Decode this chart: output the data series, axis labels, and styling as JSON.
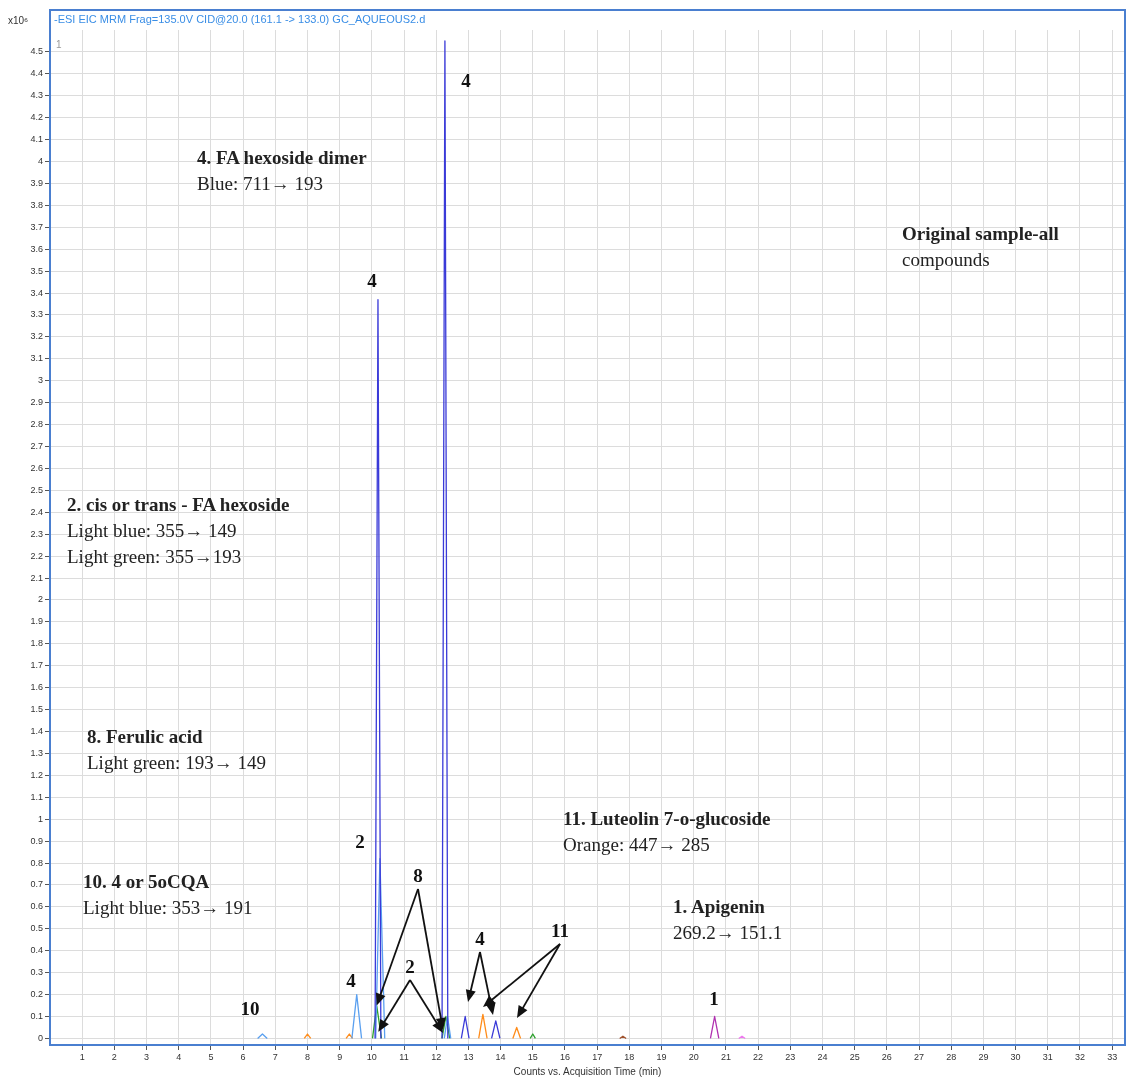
{
  "chart_data": {
    "type": "line",
    "title": "-ESI EIC MRM Frag=135.0V CID@20.0 (161.1 -> 133.0) GC_AQUEOUS2.d",
    "xlabel": "Counts vs. Acquisition Time (min)",
    "ylabel": "x10⁶",
    "xlim": [
      0,
      33.4
    ],
    "ylim": [
      -0.03,
      4.6
    ],
    "xticks": [
      1,
      2,
      3,
      4,
      5,
      6,
      7,
      8,
      9,
      10,
      11,
      12,
      13,
      14,
      15,
      16,
      17,
      18,
      19,
      20,
      21,
      22,
      23,
      24,
      25,
      26,
      27,
      28,
      29,
      30,
      31,
      32,
      33
    ],
    "yticks": [
      0,
      0.1,
      0.2,
      0.3,
      0.4,
      0.5,
      0.6,
      0.7,
      0.8,
      0.9,
      1,
      1.1,
      1.2,
      1.3,
      1.4,
      1.5,
      1.6,
      1.7,
      1.8,
      1.9,
      2,
      2.1,
      2.2,
      2.3,
      2.4,
      2.5,
      2.6,
      2.7,
      2.8,
      2.9,
      3,
      3.1,
      3.2,
      3.3,
      3.4,
      3.5,
      3.6,
      3.7,
      3.8,
      3.9,
      4,
      4.1,
      4.2,
      4.3,
      4.4,
      4.5
    ],
    "grid": true,
    "legend": false,
    "marker": "none",
    "line_style": "solid",
    "series": [
      {
        "color": "#3a3ad8",
        "x": [
          10.1,
          10.19,
          10.28,
          11,
          12.18,
          12.27,
          12.36,
          12.5,
          12.78,
          12.9,
          13.02,
          13.4,
          13.72,
          13.85,
          13.98
        ],
        "values": [
          0,
          3.37,
          0,
          null,
          0,
          4.55,
          0,
          null,
          0,
          0.1,
          0,
          null,
          0,
          0.08,
          0
        ]
      },
      {
        "color": "#5aa0f0",
        "x": [
          6.45,
          6.6,
          6.75,
          8,
          9.38,
          9.53,
          9.68,
          9.9,
          10.12,
          10.25,
          10.4,
          11,
          12.25,
          12.35,
          12.45
        ],
        "values": [
          0,
          0.02,
          0,
          null,
          0,
          0.2,
          0,
          null,
          0,
          0.82,
          0,
          null,
          0,
          0.1,
          0
        ]
      },
      {
        "color": "#2ca02c",
        "x": [
          10.02,
          10.15,
          10.3,
          11,
          12.18,
          12.3,
          12.42,
          13,
          14.92,
          15,
          15.08
        ],
        "values": [
          0,
          0.15,
          0,
          null,
          0,
          0.1,
          0,
          null,
          0,
          0.02,
          0
        ]
      },
      {
        "color": "#ff8c1a",
        "x": [
          7.9,
          8,
          8.1,
          8.6,
          9.2,
          9.3,
          9.4,
          11,
          13.32,
          13.45,
          13.58,
          14,
          14.38,
          14.5,
          14.62
        ],
        "values": [
          0,
          0.02,
          0,
          null,
          0,
          0.02,
          0,
          null,
          0,
          0.11,
          0,
          null,
          0,
          0.05,
          0
        ]
      },
      {
        "color": "#b030b0",
        "x": [
          20.52,
          20.65,
          20.78
        ],
        "values": [
          0,
          0.1,
          0
        ]
      },
      {
        "color": "#ee77ee",
        "x": [
          21.4,
          21.5,
          21.6
        ],
        "values": [
          0,
          0.01,
          0
        ]
      },
      {
        "color": "#a0522d",
        "x": [
          17.7,
          17.8,
          17.9
        ],
        "values": [
          0,
          0.01,
          0
        ]
      }
    ],
    "annotations": [
      "1",
      "4. FA hexoside dimer\nBlue: 711→ 193",
      "Original sample-all\ncompounds",
      "2. cis or trans - FA hexoside\nLight blue: 355→ 149\nLight green: 355→193",
      "8. Ferulic acid\nLight green: 193→ 149",
      "11. Luteolin 7-o-glucoside\nOrange: 447→ 285",
      "10. 4 or 5oCQA\nLight blue: 353→ 191",
      "1. Apigenin\n269.2→ 151.1",
      "4",
      "4",
      "2",
      {
        "text": "8",
        "x": 10.15,
        "y": 0.15
      },
      {
        "text": "2",
        "x": 10.2,
        "y": 0.03
      },
      "4",
      "11",
      "4",
      "10",
      "1"
    ]
  }
}
